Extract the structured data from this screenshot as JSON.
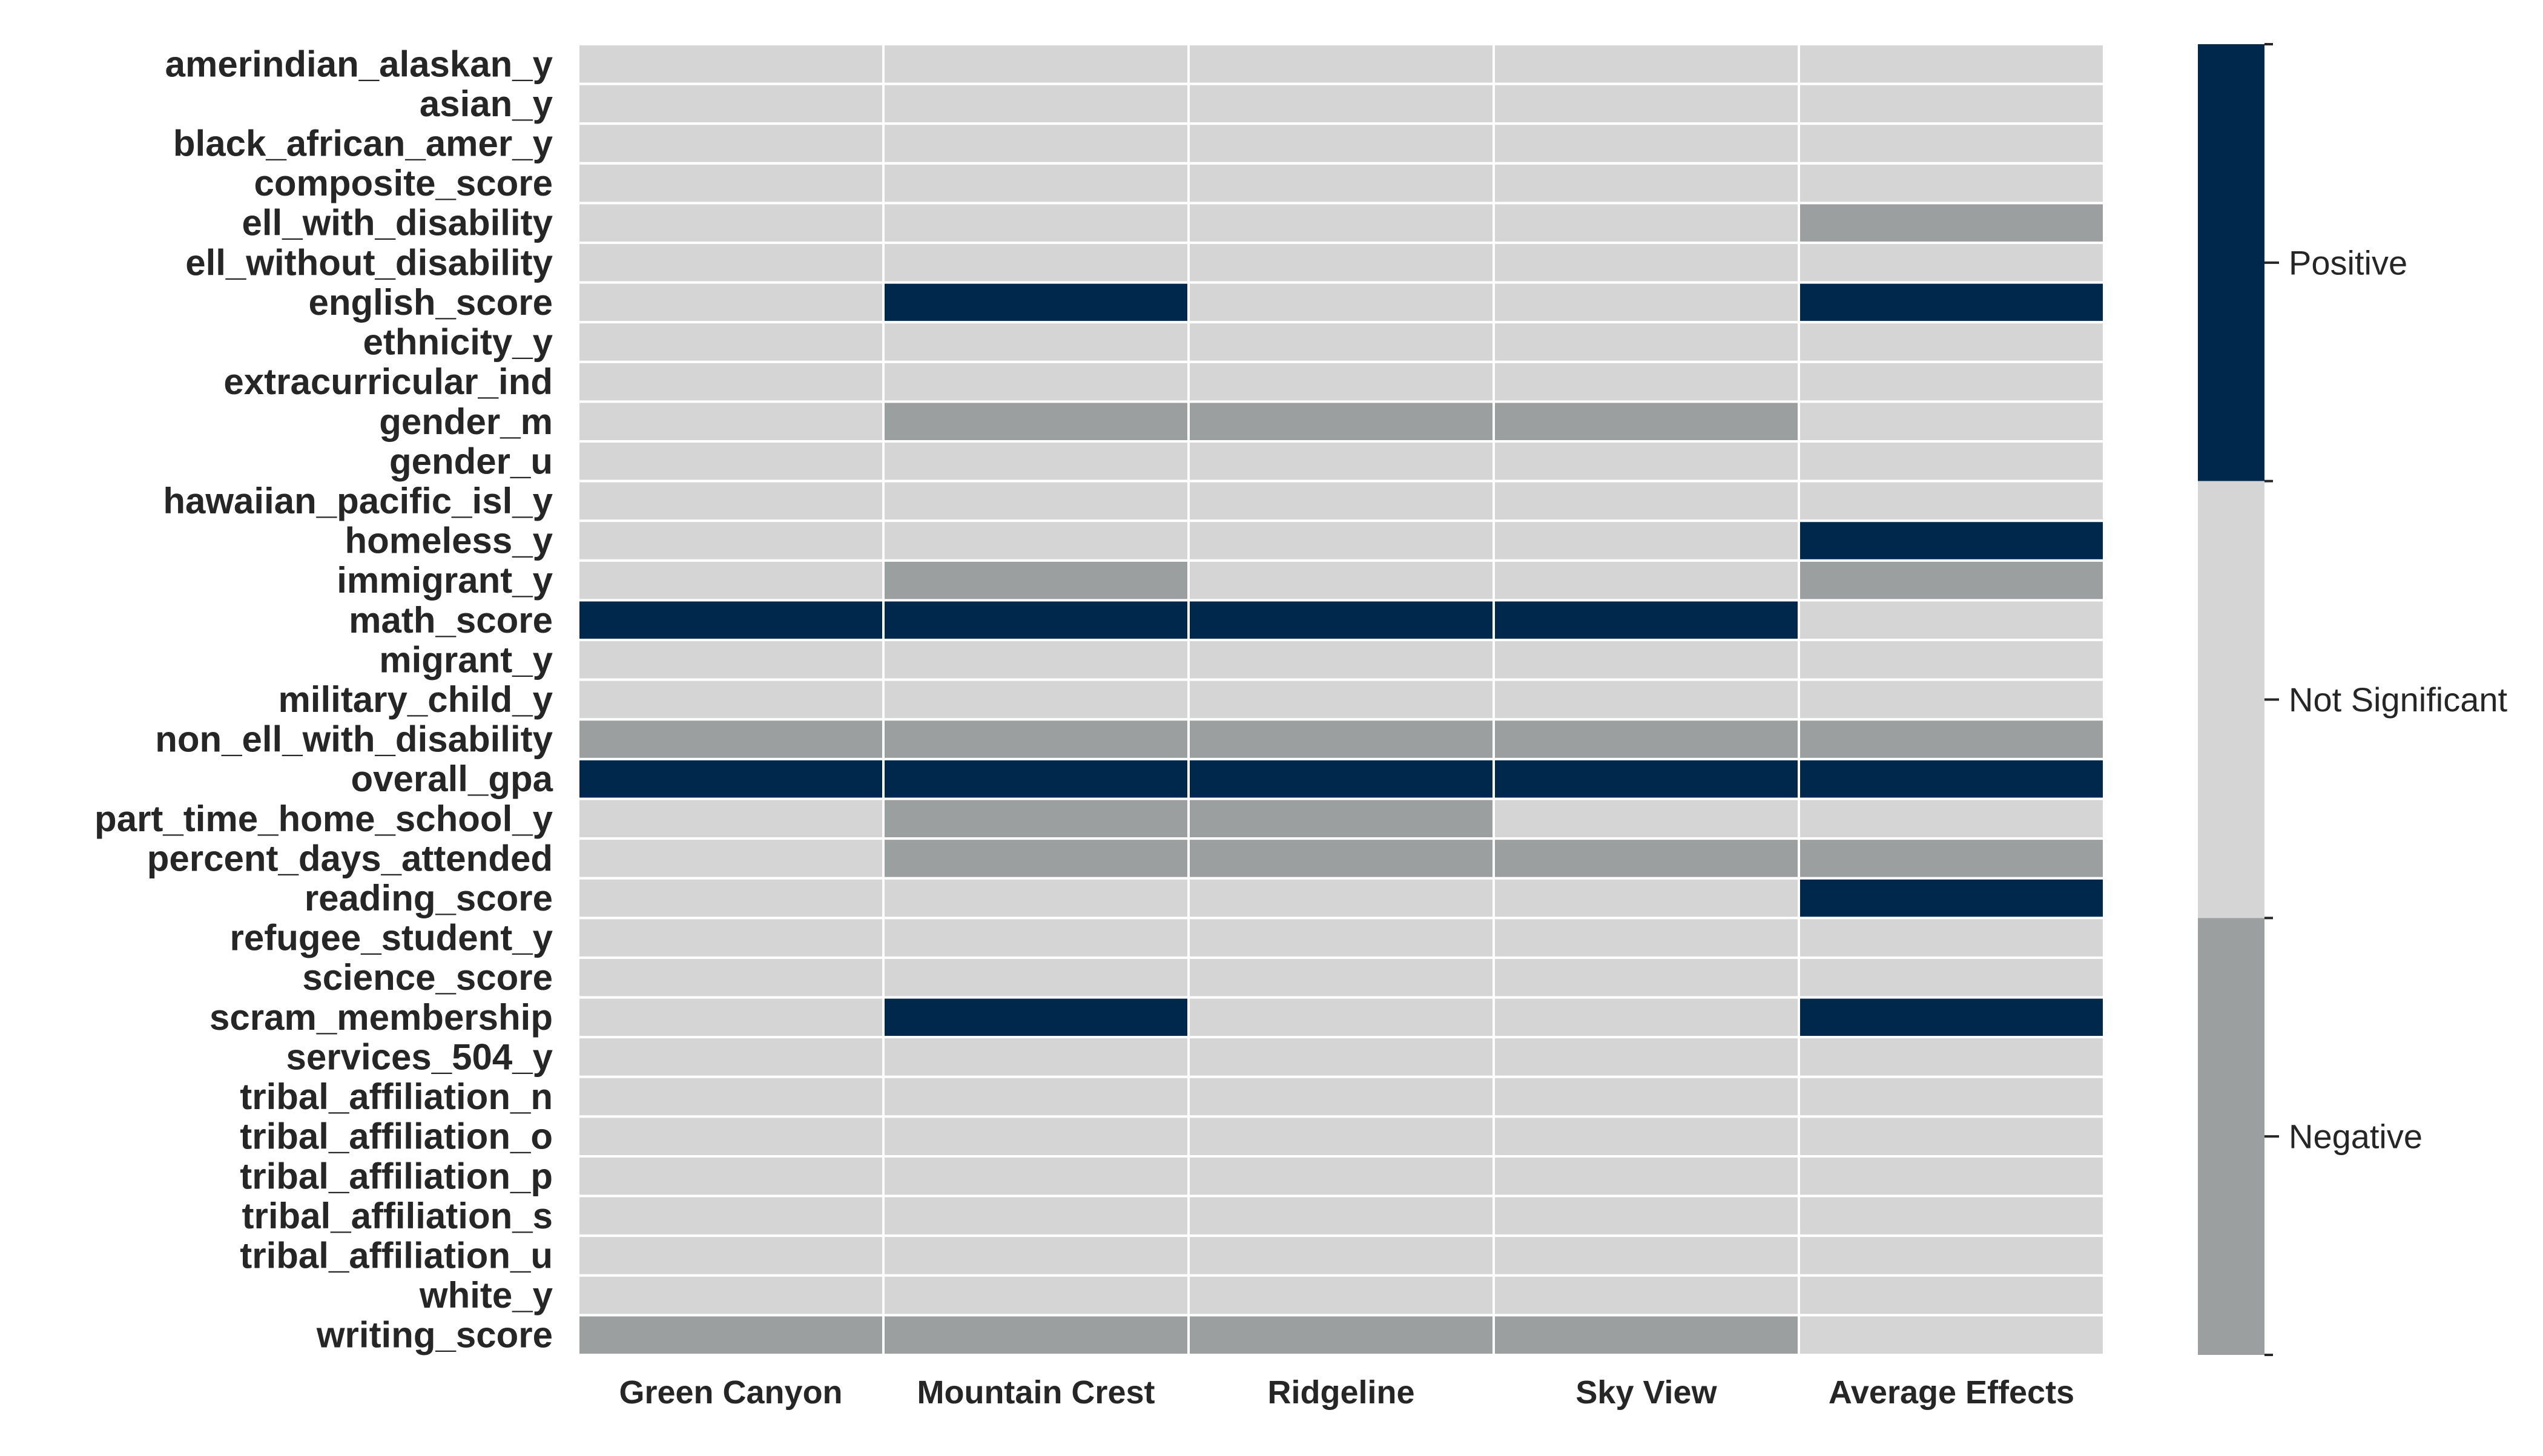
{
  "chart_data": {
    "type": "heatmap",
    "title": "",
    "xlabel": "",
    "ylabel": "",
    "x_categories": [
      "Green Canyon",
      "Mountain Crest",
      "Ridgeline",
      "Sky View",
      "Average Effects"
    ],
    "y_categories": [
      "amerindian_alaskan_y",
      "asian_y",
      "black_african_amer_y",
      "composite_score",
      "ell_with_disability",
      "ell_without_disability",
      "english_score",
      "ethnicity_y",
      "extracurricular_ind",
      "gender_m",
      "gender_u",
      "hawaiian_pacific_isl_y",
      "homeless_y",
      "immigrant_y",
      "math_score",
      "migrant_y",
      "military_child_y",
      "non_ell_with_disability",
      "overall_gpa",
      "part_time_home_school_y",
      "percent_days_attended",
      "reading_score",
      "refugee_student_y",
      "science_score",
      "scram_membership",
      "services_504_y",
      "tribal_affiliation_n",
      "tribal_affiliation_o",
      "tribal_affiliation_p",
      "tribal_affiliation_s",
      "tribal_affiliation_u",
      "white_y",
      "writing_score"
    ],
    "value_encoding": {
      "-1": "Negative",
      "0": "Not Significant",
      "1": "Positive"
    },
    "values": [
      [
        0,
        0,
        0,
        0,
        0
      ],
      [
        0,
        0,
        0,
        0,
        0
      ],
      [
        0,
        0,
        0,
        0,
        0
      ],
      [
        0,
        0,
        0,
        0,
        0
      ],
      [
        0,
        0,
        0,
        0,
        -1
      ],
      [
        0,
        0,
        0,
        0,
        0
      ],
      [
        0,
        1,
        0,
        0,
        1
      ],
      [
        0,
        0,
        0,
        0,
        0
      ],
      [
        0,
        0,
        0,
        0,
        0
      ],
      [
        0,
        -1,
        -1,
        -1,
        0
      ],
      [
        0,
        0,
        0,
        0,
        0
      ],
      [
        0,
        0,
        0,
        0,
        0
      ],
      [
        0,
        0,
        0,
        0,
        1
      ],
      [
        0,
        -1,
        0,
        0,
        -1
      ],
      [
        1,
        1,
        1,
        1,
        0
      ],
      [
        0,
        0,
        0,
        0,
        0
      ],
      [
        0,
        0,
        0,
        0,
        0
      ],
      [
        -1,
        -1,
        -1,
        -1,
        -1
      ],
      [
        1,
        1,
        1,
        1,
        1
      ],
      [
        0,
        -1,
        -1,
        0,
        0
      ],
      [
        0,
        -1,
        -1,
        -1,
        -1
      ],
      [
        0,
        0,
        0,
        0,
        1
      ],
      [
        0,
        0,
        0,
        0,
        0
      ],
      [
        0,
        0,
        0,
        0,
        0
      ],
      [
        0,
        1,
        0,
        0,
        1
      ],
      [
        0,
        0,
        0,
        0,
        0
      ],
      [
        0,
        0,
        0,
        0,
        0
      ],
      [
        0,
        0,
        0,
        0,
        0
      ],
      [
        0,
        0,
        0,
        0,
        0
      ],
      [
        0,
        0,
        0,
        0,
        0
      ],
      [
        0,
        0,
        0,
        0,
        0
      ],
      [
        0,
        0,
        0,
        0,
        0
      ],
      [
        -1,
        -1,
        -1,
        -1,
        0
      ]
    ],
    "colorbar": {
      "levels": [
        {
          "value": 1,
          "label": "Positive",
          "color": "#00274c"
        },
        {
          "value": 0,
          "label": "Not Significant",
          "color": "#d5d5d5"
        },
        {
          "value": -1,
          "label": "Negative",
          "color": "#9c9fa0"
        }
      ]
    },
    "grid_line_color": "#ffffff",
    "legend_position": "right"
  }
}
